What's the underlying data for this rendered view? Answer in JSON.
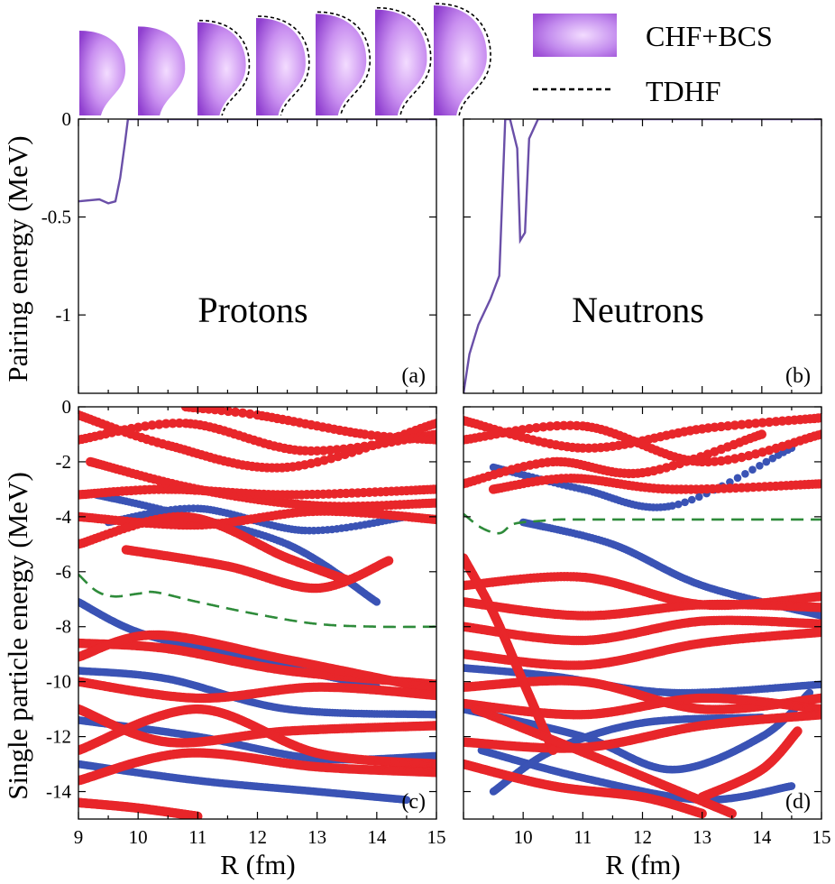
{
  "figure": {
    "legend": {
      "chf_label": "CHF+BCS",
      "tdhf_label": "TDHF",
      "chf_color": "#9d4fd6"
    },
    "shape_strip": {
      "description": "",
      "count": 7
    },
    "ylabel_pairing": "Pairing energy (MeV)",
    "ylabel_sp": "Single particle energy (MeV)",
    "xlabel": "R (fm)",
    "colors": {
      "proton_like": "#e8262a",
      "other": "#3a53b5",
      "fermi": "#2e8b3a",
      "pairing": "#6a4fa8"
    }
  },
  "chart_data": [
    {
      "id": "a",
      "type": "line",
      "panel_label": "(a)",
      "title": "Protons",
      "xlim": [
        9,
        15
      ],
      "ylim": [
        -1.4,
        0
      ],
      "xticks": [],
      "yticks": [
        "0",
        "-0.5",
        "-1"
      ],
      "ytick_values": [
        0,
        -0.5,
        -1
      ],
      "series": [
        {
          "name": "Pairing energy",
          "x": [
            9.0,
            9.35,
            9.5,
            9.62,
            9.7,
            9.78,
            9.83,
            15.0
          ],
          "y": [
            -0.42,
            -0.41,
            -0.43,
            -0.42,
            -0.3,
            -0.12,
            0.0,
            0.0
          ]
        }
      ]
    },
    {
      "id": "b",
      "type": "line",
      "panel_label": "(b)",
      "title": "Neutrons",
      "xlim": [
        9,
        15
      ],
      "ylim": [
        -1.4,
        0
      ],
      "xticks": [],
      "yticks": [],
      "ytick_values": [
        0,
        -0.5,
        -1
      ],
      "series": [
        {
          "name": "Pairing energy",
          "x": [
            9.0,
            9.1,
            9.25,
            9.45,
            9.6,
            9.7,
            9.78,
            9.9,
            9.95,
            10.03,
            10.1,
            10.25,
            15.0
          ],
          "y": [
            -1.4,
            -1.2,
            -1.05,
            -0.92,
            -0.8,
            0.0,
            0.0,
            -0.15,
            -0.62,
            -0.58,
            -0.1,
            0.0,
            0.0
          ]
        }
      ]
    },
    {
      "id": "c",
      "type": "scatter",
      "panel_label": "(c)",
      "xlim": [
        9,
        15
      ],
      "ylim": [
        -15,
        0
      ],
      "xticks": [
        "9",
        "10",
        "11",
        "12",
        "13",
        "14",
        "15"
      ],
      "xtick_values": [
        9,
        10,
        11,
        12,
        13,
        14,
        15
      ],
      "yticks": [
        "0",
        "-2",
        "-4",
        "-6",
        "-8",
        "-10",
        "-12",
        "-14"
      ],
      "ytick_values": [
        0,
        -2,
        -4,
        -6,
        -8,
        -10,
        -12,
        -14
      ],
      "fermi": {
        "x": [
          9.0,
          9.3,
          9.6,
          10.0,
          10.3,
          11.0,
          12.0,
          13.0,
          14.0,
          15.0
        ],
        "y": [
          -6.1,
          -6.7,
          -6.9,
          -6.8,
          -6.75,
          -7.1,
          -7.55,
          -7.9,
          -8.0,
          -8.0
        ]
      },
      "red_levels": [
        [
          [
            9.0,
            -0.3
          ],
          [
            10.5,
            -1.4
          ],
          [
            12.5,
            -2.2
          ],
          [
            15.0,
            -0.6
          ]
        ],
        [
          [
            9.0,
            -1.2
          ],
          [
            10.8,
            -0.6
          ],
          [
            12.8,
            -1.6
          ],
          [
            15.0,
            -1.0
          ]
        ],
        [
          [
            9.2,
            -2.0
          ],
          [
            11.0,
            -3.0
          ],
          [
            13.0,
            -3.6
          ],
          [
            15.0,
            -3.5
          ]
        ],
        [
          [
            9.0,
            -3.2
          ],
          [
            10.5,
            -3.0
          ],
          [
            12.5,
            -3.2
          ],
          [
            15.0,
            -3.0
          ]
        ],
        [
          [
            9.0,
            -4.0
          ],
          [
            11.0,
            -4.3
          ],
          [
            13.0,
            -3.8
          ],
          [
            15.0,
            -4.1
          ]
        ],
        [
          [
            9.8,
            -5.2
          ],
          [
            11.5,
            -5.8
          ],
          [
            13.0,
            -6.6
          ],
          [
            14.2,
            -5.6
          ]
        ],
        [
          [
            9.0,
            -5.0
          ],
          [
            10.8,
            -4.0
          ],
          [
            12.5,
            -5.5
          ],
          [
            13.5,
            -6.3
          ]
        ],
        [
          [
            10.8,
            0.0
          ],
          [
            12.0,
            -0.3
          ],
          [
            13.8,
            -1.0
          ],
          [
            15.0,
            -1.2
          ]
        ],
        [
          [
            9.0,
            -8.6
          ],
          [
            10.5,
            -8.8
          ],
          [
            12.5,
            -9.6
          ],
          [
            15.0,
            -10.1
          ]
        ],
        [
          [
            9.0,
            -9.1
          ],
          [
            10.3,
            -8.3
          ],
          [
            12.5,
            -9.2
          ],
          [
            15.0,
            -10.3
          ]
        ],
        [
          [
            9.0,
            -10.0
          ],
          [
            11.0,
            -10.6
          ],
          [
            13.0,
            -10.2
          ],
          [
            15.0,
            -10.5
          ]
        ],
        [
          [
            9.0,
            -11.0
          ],
          [
            10.5,
            -12.2
          ],
          [
            12.5,
            -11.8
          ],
          [
            15.0,
            -11.6
          ]
        ],
        [
          [
            9.0,
            -12.5
          ],
          [
            11.0,
            -11.0
          ],
          [
            13.0,
            -12.6
          ],
          [
            15.0,
            -13.0
          ]
        ],
        [
          [
            9.0,
            -13.6
          ],
          [
            10.8,
            -12.6
          ],
          [
            13.0,
            -13.1
          ],
          [
            15.0,
            -13.3
          ]
        ],
        [
          [
            9.0,
            -14.4
          ],
          [
            10.0,
            -14.6
          ],
          [
            11.0,
            -14.9
          ]
        ]
      ],
      "blue_levels": [
        [
          [
            9.3,
            -3.2
          ],
          [
            10.5,
            -3.8
          ],
          [
            12.5,
            -5.0
          ],
          [
            14.0,
            -7.1
          ]
        ],
        [
          [
            9.5,
            -4.2
          ],
          [
            11.0,
            -3.7
          ],
          [
            12.8,
            -4.5
          ],
          [
            14.5,
            -4.0
          ]
        ],
        [
          [
            9.0,
            -7.1
          ],
          [
            10.0,
            -8.2
          ],
          [
            11.5,
            -9.0
          ],
          [
            14.0,
            -10.2
          ]
        ],
        [
          [
            9.0,
            -9.6
          ],
          [
            10.5,
            -9.9
          ],
          [
            12.5,
            -11.0
          ],
          [
            15.0,
            -11.2
          ]
        ],
        [
          [
            9.0,
            -11.4
          ],
          [
            11.0,
            -12.0
          ],
          [
            13.0,
            -12.8
          ],
          [
            15.0,
            -12.7
          ]
        ],
        [
          [
            9.0,
            -13.0
          ],
          [
            11.0,
            -13.6
          ],
          [
            13.0,
            -14.0
          ],
          [
            14.5,
            -14.3
          ]
        ]
      ]
    },
    {
      "id": "d",
      "type": "scatter",
      "panel_label": "(d)",
      "xlim": [
        9,
        15
      ],
      "ylim": [
        -15,
        0
      ],
      "xticks": [
        "10",
        "11",
        "12",
        "13",
        "14",
        "15"
      ],
      "xtick_values": [
        10,
        11,
        12,
        13,
        14,
        15
      ],
      "yticks": [],
      "ytick_values": [
        0,
        -2,
        -4,
        -6,
        -8,
        -10,
        -12,
        -14
      ],
      "fermi": {
        "x": [
          9.0,
          9.3,
          9.6,
          9.8,
          10.0,
          10.3,
          10.6,
          11.0,
          13.0,
          15.0
        ],
        "y": [
          -3.9,
          -4.4,
          -4.6,
          -4.3,
          -4.2,
          -4.15,
          -4.1,
          -4.1,
          -4.1,
          -4.1
        ]
      },
      "red_levels": [
        [
          [
            9.0,
            -0.5
          ],
          [
            11.0,
            -1.5
          ],
          [
            13.0,
            -0.8
          ],
          [
            15.0,
            -0.4
          ]
        ],
        [
          [
            9.0,
            -1.2
          ],
          [
            11.0,
            -0.7
          ],
          [
            13.0,
            -2.0
          ],
          [
            15.0,
            -1.0
          ]
        ],
        [
          [
            9.0,
            -2.8
          ],
          [
            10.5,
            -2.0
          ],
          [
            12.0,
            -2.4
          ],
          [
            14.0,
            -1.0
          ]
        ],
        [
          [
            9.5,
            -3.0
          ],
          [
            10.8,
            -2.6
          ],
          [
            12.5,
            -3.0
          ],
          [
            15.0,
            -2.8
          ]
        ],
        [
          [
            9.0,
            -6.5
          ],
          [
            11.0,
            -6.2
          ],
          [
            13.0,
            -7.2
          ],
          [
            15.0,
            -6.9
          ]
        ],
        [
          [
            9.0,
            -7.1
          ],
          [
            11.0,
            -7.6
          ],
          [
            13.0,
            -7.2
          ],
          [
            15.0,
            -7.3
          ]
        ],
        [
          [
            9.0,
            -8.0
          ],
          [
            11.0,
            -8.5
          ],
          [
            13.0,
            -7.8
          ],
          [
            15.0,
            -7.9
          ]
        ],
        [
          [
            9.0,
            -9.0
          ],
          [
            11.0,
            -9.4
          ],
          [
            13.0,
            -8.6
          ],
          [
            15.0,
            -8.2
          ]
        ],
        [
          [
            9.0,
            -10.2
          ],
          [
            11.0,
            -10.0
          ],
          [
            13.0,
            -11.0
          ],
          [
            15.0,
            -10.6
          ]
        ],
        [
          [
            9.0,
            -10.8
          ],
          [
            11.0,
            -11.2
          ],
          [
            13.0,
            -10.6
          ],
          [
            15.0,
            -11.0
          ]
        ],
        [
          [
            9.0,
            -12.2
          ],
          [
            11.0,
            -12.4
          ],
          [
            13.0,
            -11.6
          ],
          [
            15.0,
            -11.2
          ]
        ],
        [
          [
            9.0,
            -13.0
          ],
          [
            10.5,
            -13.8
          ],
          [
            12.0,
            -14.2
          ],
          [
            13.0,
            -14.8
          ]
        ],
        [
          [
            9.0,
            -5.5
          ],
          [
            9.5,
            -7.5
          ],
          [
            10.0,
            -10.0
          ],
          [
            10.5,
            -12.5
          ]
        ],
        [
          [
            9.2,
            -11.0
          ],
          [
            11.5,
            -13.0
          ],
          [
            13.5,
            -14.8
          ]
        ],
        [
          [
            13.0,
            -14.2
          ],
          [
            14.0,
            -13.2
          ],
          [
            14.6,
            -11.8
          ]
        ]
      ],
      "blue_levels": [
        [
          [
            9.5,
            -2.2
          ],
          [
            11.0,
            -3.0
          ],
          [
            12.5,
            -3.6
          ],
          [
            14.5,
            -1.5
          ]
        ],
        [
          [
            10.0,
            -4.2
          ],
          [
            11.5,
            -5.0
          ],
          [
            13.0,
            -6.5
          ],
          [
            15.0,
            -7.6
          ]
        ],
        [
          [
            9.0,
            -11.0
          ],
          [
            11.0,
            -12.0
          ],
          [
            12.5,
            -13.2
          ],
          [
            14.0,
            -12.0
          ],
          [
            14.8,
            -10.4
          ]
        ],
        [
          [
            9.3,
            -12.5
          ],
          [
            11.0,
            -13.5
          ],
          [
            13.0,
            -14.3
          ],
          [
            14.5,
            -13.8
          ]
        ],
        [
          [
            9.0,
            -9.5
          ],
          [
            10.5,
            -9.8
          ],
          [
            12.5,
            -10.4
          ],
          [
            15.0,
            -10.1
          ]
        ],
        [
          [
            9.5,
            -14.0
          ],
          [
            10.5,
            -12.5
          ],
          [
            12.0,
            -11.5
          ],
          [
            14.0,
            -11.3
          ]
        ]
      ]
    }
  ]
}
